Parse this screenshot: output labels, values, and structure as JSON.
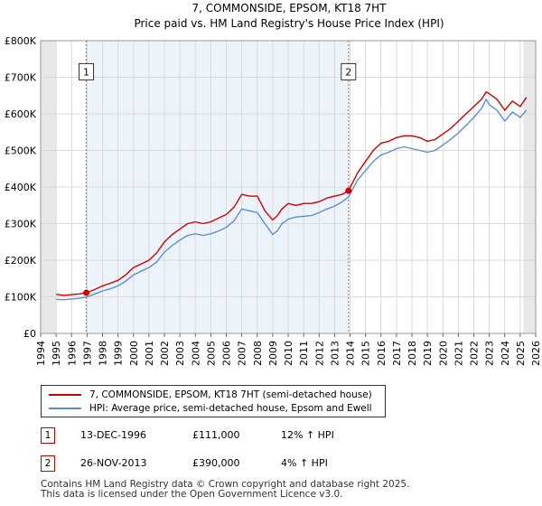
{
  "chart_data": {
    "type": "line",
    "title": "7, COMMONSIDE, EPSOM, KT18 7HT",
    "subtitle": "Price paid vs. HM Land Registry's House Price Index (HPI)",
    "xlim": [
      1994,
      2026
    ],
    "ylim": [
      0,
      800000
    ],
    "x_ticks": [
      "1994",
      "1995",
      "1996",
      "1997",
      "1998",
      "1999",
      "2000",
      "2001",
      "2002",
      "2003",
      "2004",
      "2005",
      "2006",
      "2007",
      "2008",
      "2009",
      "2010",
      "2011",
      "2012",
      "2013",
      "2014",
      "2015",
      "2016",
      "2017",
      "2018",
      "2019",
      "2020",
      "2021",
      "2022",
      "2023",
      "2024",
      "2025",
      "2026"
    ],
    "y_ticks": [
      {
        "value": 0,
        "label": "£0"
      },
      {
        "value": 100000,
        "label": "£100K"
      },
      {
        "value": 200000,
        "label": "£200K"
      },
      {
        "value": 300000,
        "label": "£300K"
      },
      {
        "value": 400000,
        "label": "£400K"
      },
      {
        "value": 500000,
        "label": "£500K"
      },
      {
        "value": 600000,
        "label": "£600K"
      },
      {
        "value": 700000,
        "label": "£700K"
      },
      {
        "value": 800000,
        "label": "£800K"
      }
    ],
    "data_span": [
      1995,
      2025.6
    ],
    "series": [
      {
        "name": "7, COMMONSIDE, EPSOM, KT18 7HT (semi-detached house)",
        "color": "#cc0000",
        "x": [
          1995.0,
          1995.5,
          1996.0,
          1996.5,
          1996.95,
          1997.5,
          1998.0,
          1998.5,
          1999.0,
          1999.5,
          2000.0,
          2000.5,
          2001.0,
          2001.5,
          2002.0,
          2002.5,
          2003.0,
          2003.5,
          2004.0,
          2004.5,
          2005.0,
          2005.5,
          2006.0,
          2006.5,
          2007.0,
          2007.5,
          2008.0,
          2008.5,
          2009.0,
          2009.3,
          2009.6,
          2010.0,
          2010.5,
          2011.0,
          2011.5,
          2012.0,
          2012.5,
          2013.0,
          2013.5,
          2013.9,
          2014.5,
          2015.0,
          2015.5,
          2016.0,
          2016.5,
          2017.0,
          2017.5,
          2018.0,
          2018.5,
          2019.0,
          2019.5,
          2020.0,
          2020.5,
          2021.0,
          2021.5,
          2022.0,
          2022.5,
          2022.8,
          2023.0,
          2023.5,
          2024.0,
          2024.5,
          2025.0,
          2025.4
        ],
        "values": [
          107000,
          104000,
          106000,
          108000,
          111000,
          120000,
          130000,
          137000,
          145000,
          160000,
          180000,
          190000,
          200000,
          220000,
          250000,
          270000,
          285000,
          300000,
          305000,
          300000,
          305000,
          315000,
          325000,
          345000,
          380000,
          375000,
          375000,
          335000,
          310000,
          322000,
          340000,
          355000,
          350000,
          355000,
          355000,
          360000,
          370000,
          375000,
          380000,
          390000,
          440000,
          470000,
          500000,
          520000,
          525000,
          535000,
          540000,
          540000,
          535000,
          525000,
          530000,
          545000,
          560000,
          580000,
          600000,
          620000,
          640000,
          660000,
          655000,
          640000,
          610000,
          635000,
          620000,
          645000
        ]
      },
      {
        "name": "HPI: Average price, semi-detached house, Epsom and Ewell",
        "color": "#5b8ed6",
        "x": [
          1995.0,
          1995.5,
          1996.0,
          1996.5,
          1996.95,
          1997.5,
          1998.0,
          1998.5,
          1999.0,
          1999.5,
          2000.0,
          2000.5,
          2001.0,
          2001.5,
          2002.0,
          2002.5,
          2003.0,
          2003.5,
          2004.0,
          2004.5,
          2005.0,
          2005.5,
          2006.0,
          2006.5,
          2007.0,
          2007.5,
          2008.0,
          2008.5,
          2009.0,
          2009.3,
          2009.6,
          2010.0,
          2010.5,
          2011.0,
          2011.5,
          2012.0,
          2012.5,
          2013.0,
          2013.5,
          2013.9,
          2014.5,
          2015.0,
          2015.5,
          2016.0,
          2016.5,
          2017.0,
          2017.5,
          2018.0,
          2018.5,
          2019.0,
          2019.5,
          2020.0,
          2020.5,
          2021.0,
          2021.5,
          2022.0,
          2022.5,
          2022.8,
          2023.0,
          2023.5,
          2024.0,
          2024.5,
          2025.0,
          2025.4
        ],
        "values": [
          93000,
          92000,
          94000,
          96000,
          99000,
          108000,
          116000,
          122000,
          130000,
          143000,
          160000,
          170000,
          180000,
          195000,
          222000,
          240000,
          255000,
          268000,
          272000,
          268000,
          272000,
          280000,
          290000,
          308000,
          340000,
          335000,
          330000,
          300000,
          270000,
          280000,
          300000,
          312000,
          318000,
          320000,
          322000,
          330000,
          340000,
          348000,
          360000,
          373000,
          420000,
          445000,
          470000,
          488000,
          495000,
          505000,
          510000,
          505000,
          500000,
          495000,
          500000,
          515000,
          530000,
          548000,
          568000,
          590000,
          615000,
          640000,
          625000,
          610000,
          580000,
          605000,
          590000,
          610000
        ]
      }
    ],
    "sales": [
      {
        "id": "1",
        "x": 1996.95,
        "value": 111000
      },
      {
        "id": "2",
        "x": 2013.9,
        "value": 390000
      }
    ],
    "shaded_regions": [
      [
        1994,
        1995
      ],
      [
        2025.2,
        2026
      ]
    ]
  },
  "legend": {
    "items": [
      {
        "label": "7, COMMONSIDE, EPSOM, KT18 7HT (semi-detached house)",
        "color": "#cc0000"
      },
      {
        "label": "HPI: Average price, semi-detached house, Epsom and Ewell",
        "color": "#5b8ed6"
      }
    ]
  },
  "transactions": [
    {
      "id": "1",
      "date": "13-DEC-1996",
      "price": "£111,000",
      "hpi": "12% ↑ HPI"
    },
    {
      "id": "2",
      "date": "26-NOV-2013",
      "price": "£390,000",
      "hpi": "4% ↑ HPI"
    }
  ],
  "footer": {
    "line1": "Contains HM Land Registry data © Crown copyright and database right 2025.",
    "line2": "This data is licensed under the Open Government Licence v3.0."
  }
}
